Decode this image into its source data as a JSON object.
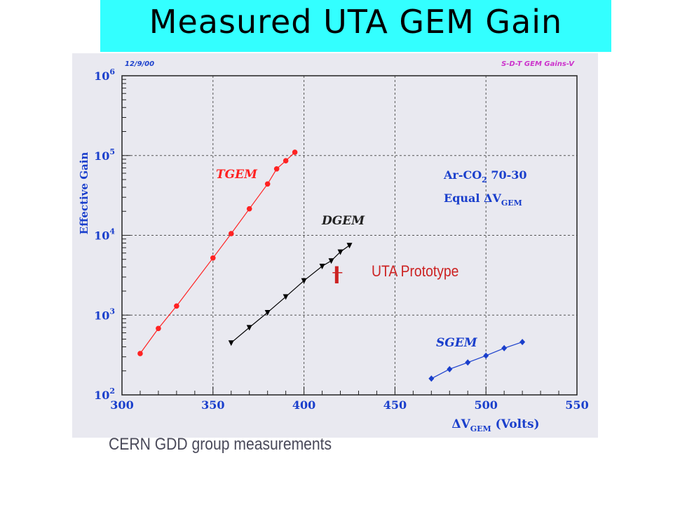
{
  "slide": {
    "title": "Measured UTA GEM Gain",
    "footer": "CERN GDD group measurements",
    "title_bg": "#33ffff"
  },
  "chart_data": {
    "type": "scatter",
    "date_note": "12/9/00",
    "plot_label": "S-D-T GEM Gains-V",
    "xlabel_main": "ΔV",
    "xlabel_sub": "GEM",
    "xlabel_unit": "(Volts)",
    "ylabel": "Effective Gain",
    "xlim": [
      300,
      550
    ],
    "ylim": [
      100,
      1000000
    ],
    "yscale": "log",
    "grid": true,
    "x_ticks": [
      "300",
      "350",
      "400",
      "450",
      "500",
      "550"
    ],
    "x_tick_values": [
      300,
      350,
      400,
      450,
      500,
      550
    ],
    "y_ticks": [
      {
        "value": 100,
        "base": "10",
        "exp": "2"
      },
      {
        "value": 1000,
        "base": "10",
        "exp": "3"
      },
      {
        "value": 10000,
        "base": "10",
        "exp": "4"
      },
      {
        "value": 100000,
        "base": "10",
        "exp": "5"
      },
      {
        "value": 1000000,
        "base": "10",
        "exp": "6"
      }
    ],
    "gas_label": {
      "line1_main": "Ar-CO",
      "line1_sub": "2",
      "line1_tail": " 70-30",
      "line2_main": "Equal ΔV",
      "line2_sub": "GEM"
    },
    "series": [
      {
        "name": "TGEM",
        "color": "#ff2222",
        "marker": "circle",
        "x": [
          310,
          320,
          330,
          350,
          360,
          370,
          380,
          385,
          390,
          395
        ],
        "y": [
          330,
          680,
          1300,
          5200,
          10500,
          21500,
          44000,
          68000,
          86000,
          110000
        ]
      },
      {
        "name": "DGEM",
        "color": "#000000",
        "marker": "triangle-down",
        "x": [
          360,
          370,
          380,
          390,
          400,
          410,
          415,
          420,
          425
        ],
        "y": [
          450,
          700,
          1080,
          1700,
          2700,
          4100,
          4800,
          6200,
          7500
        ]
      },
      {
        "name": "SGEM",
        "color": "#1a3fcc",
        "marker": "diamond",
        "x": [
          470,
          480,
          490,
          500,
          510,
          520
        ],
        "y": [
          160,
          210,
          255,
          310,
          385,
          460
        ]
      }
    ],
    "annotation": {
      "label": "UTA Prototype",
      "color": "#cc2222",
      "x": 418,
      "y_low": 2500,
      "y_high": 4100
    }
  }
}
